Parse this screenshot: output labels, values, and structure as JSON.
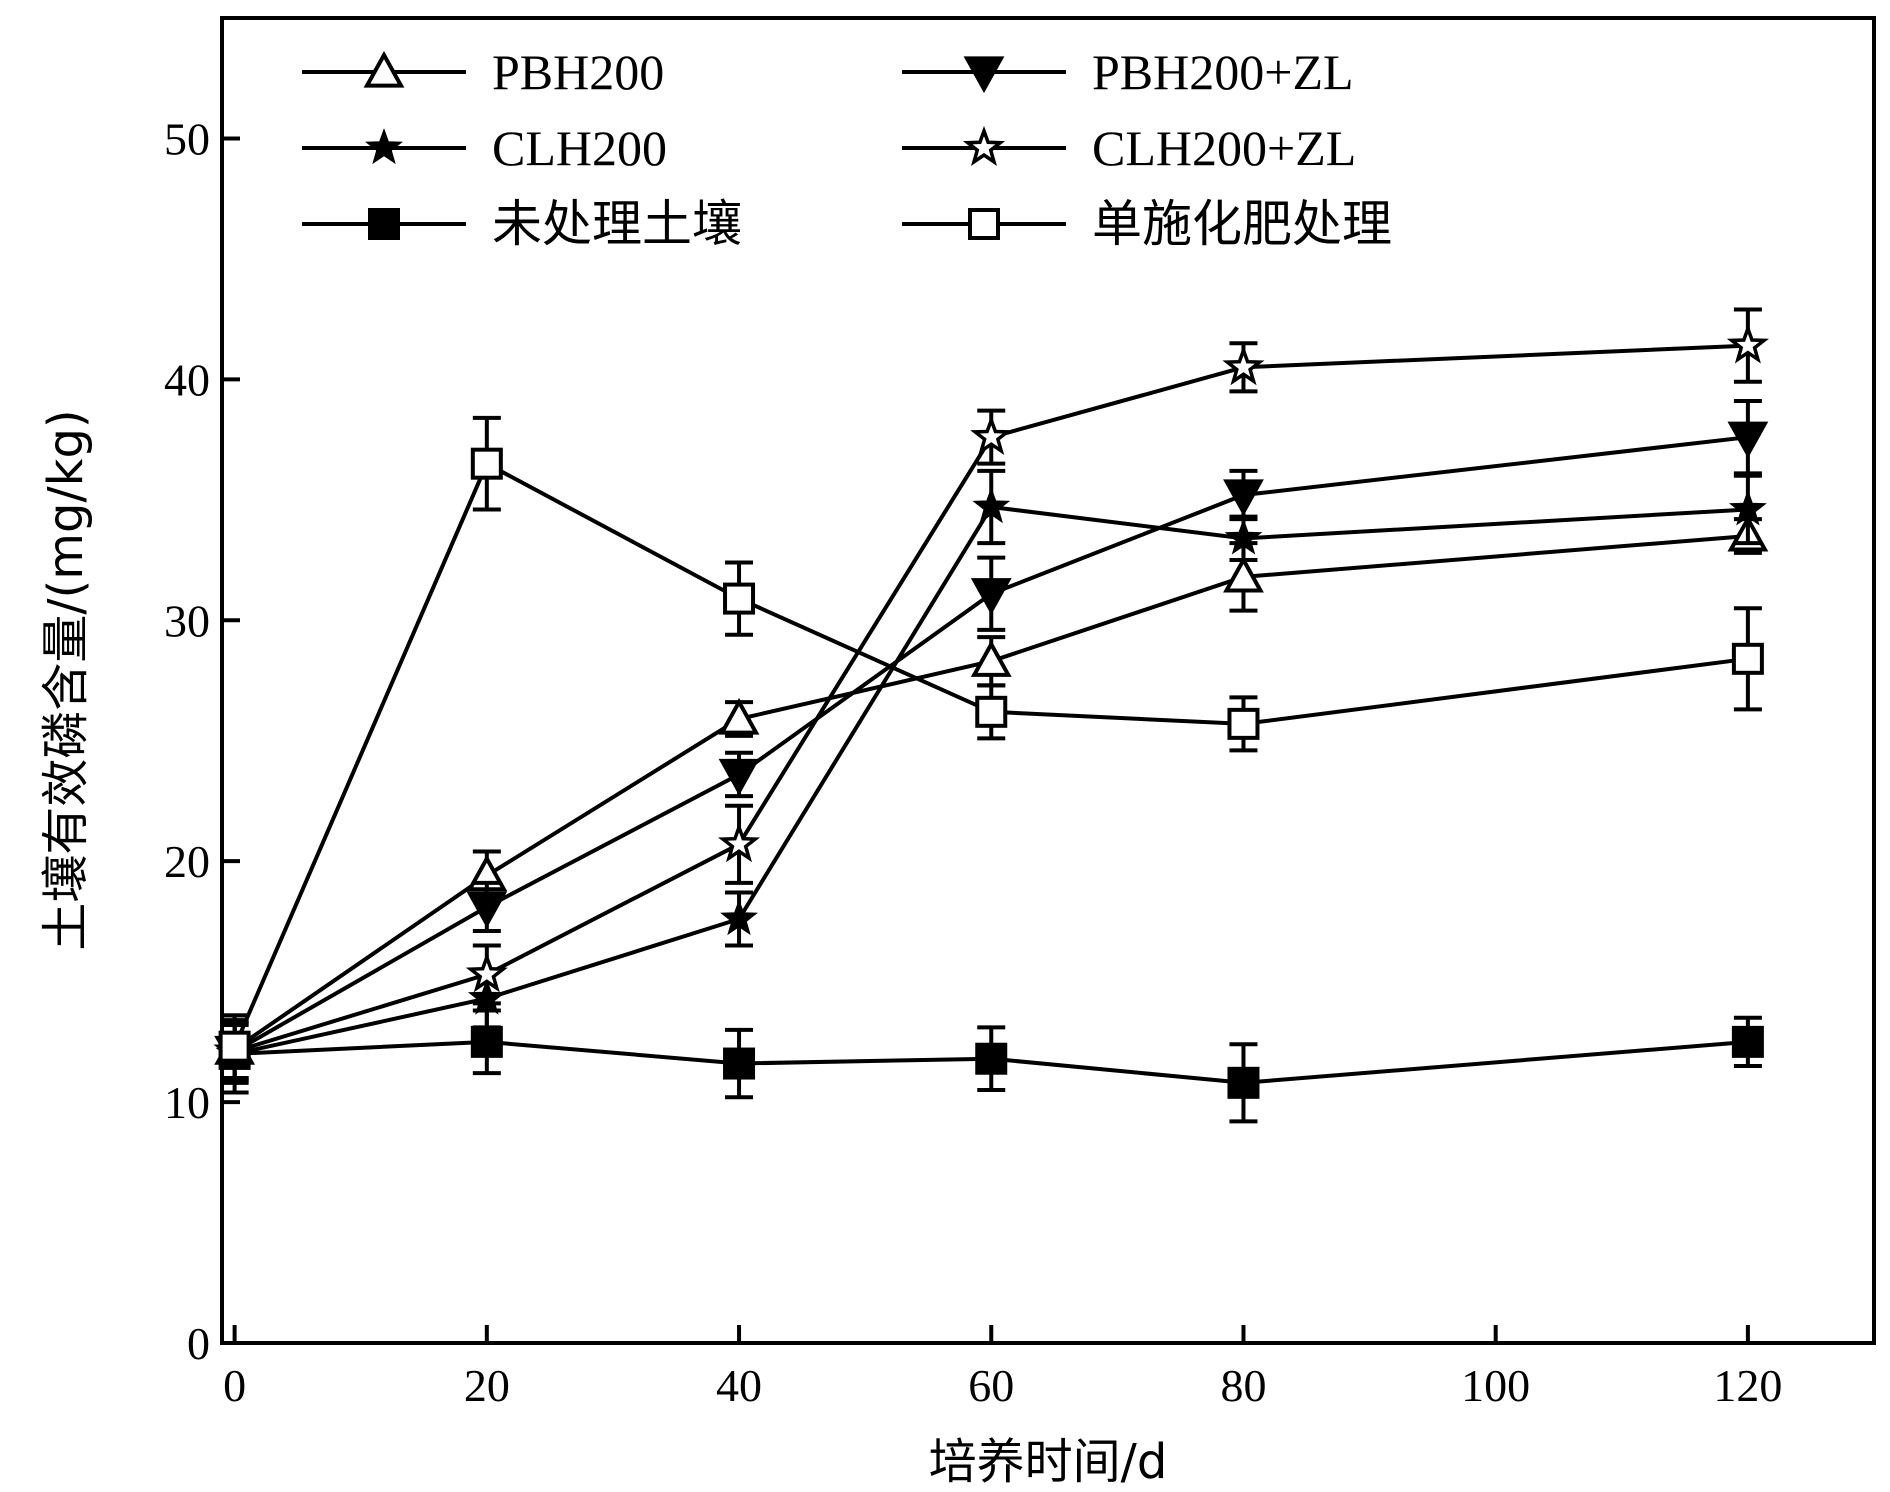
{
  "chart_data": {
    "type": "line",
    "title": "",
    "xlabel": "培养时间/d",
    "ylabel": "土壤有效磷含量/(mg/kg)",
    "xlim": [
      -1,
      130
    ],
    "ylim": [
      0,
      55
    ],
    "x_ticks": [
      0,
      20,
      40,
      60,
      80,
      100,
      120
    ],
    "y_ticks": [
      0,
      10,
      20,
      30,
      40,
      50
    ],
    "grid": false,
    "legend_position": "top",
    "x": [
      0,
      20,
      40,
      60,
      80,
      120
    ],
    "series": [
      {
        "name": "PBH200",
        "marker": "triangle-up-open",
        "values": [
          12.2,
          19.4,
          25.9,
          28.3,
          31.8,
          33.5
        ],
        "errors": [
          1.2,
          1.0,
          0.7,
          1.0,
          1.4,
          0.7
        ]
      },
      {
        "name": "PBH200+ZL",
        "marker": "triangle-down-filled",
        "values": [
          12.1,
          18.1,
          23.6,
          31.1,
          35.2,
          37.6
        ],
        "errors": [
          1.2,
          1.0,
          0.9,
          1.5,
          1.0,
          1.5
        ]
      },
      {
        "name": "CLH200",
        "marker": "star-filled",
        "values": [
          12.0,
          14.3,
          17.6,
          34.7,
          33.4,
          34.6
        ],
        "errors": [
          1.2,
          1.2,
          1.1,
          1.5,
          0.9,
          1.4
        ]
      },
      {
        "name": "CLH200+ZL",
        "marker": "star-open",
        "values": [
          12.1,
          15.3,
          20.7,
          37.6,
          40.5,
          41.4
        ],
        "errors": [
          1.2,
          1.2,
          1.6,
          1.1,
          1.0,
          1.5
        ]
      },
      {
        "name": "未处理土壤",
        "marker": "square-filled",
        "values": [
          12.0,
          12.5,
          11.6,
          11.8,
          10.8,
          12.5
        ],
        "errors": [
          1.6,
          1.3,
          1.4,
          1.3,
          1.6,
          1.0
        ]
      },
      {
        "name": "单施化肥处理",
        "marker": "square-open",
        "values": [
          12.3,
          36.5,
          30.9,
          26.2,
          25.7,
          28.4
        ],
        "errors": [
          1.3,
          1.9,
          1.5,
          1.1,
          1.1,
          2.1
        ]
      }
    ]
  }
}
